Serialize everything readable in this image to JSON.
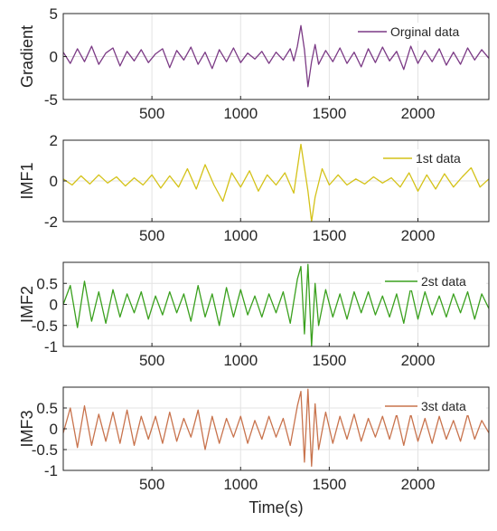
{
  "chart_data": [
    {
      "type": "line",
      "ylabel": "Gradient",
      "xlim": [
        0,
        2400
      ],
      "ylim": [
        -5,
        5
      ],
      "xticks": [
        500,
        1000,
        1500,
        2000
      ],
      "yticks": [
        -5,
        0,
        5
      ],
      "grid": true,
      "legend_position": "top-right",
      "color": "#7b3a85",
      "series": [
        {
          "name": "Orginal data",
          "x": [
            0,
            40,
            80,
            120,
            160,
            200,
            240,
            280,
            320,
            360,
            400,
            440,
            480,
            520,
            560,
            600,
            640,
            680,
            720,
            760,
            800,
            840,
            880,
            920,
            960,
            1000,
            1040,
            1080,
            1120,
            1160,
            1200,
            1240,
            1280,
            1300,
            1320,
            1340,
            1360,
            1380,
            1400,
            1420,
            1440,
            1480,
            1520,
            1560,
            1600,
            1640,
            1680,
            1720,
            1760,
            1800,
            1840,
            1880,
            1920,
            1960,
            2000,
            2040,
            2080,
            2120,
            2160,
            2200,
            2240,
            2280,
            2320,
            2360,
            2400
          ],
          "values": [
            0.5,
            -0.8,
            0.9,
            -0.6,
            1.2,
            -0.9,
            0.4,
            1.0,
            -1.1,
            0.6,
            -0.5,
            0.8,
            -0.7,
            0.3,
            0.9,
            -1.3,
            0.7,
            -0.4,
            1.1,
            -0.9,
            0.5,
            -1.4,
            0.8,
            -0.6,
            1.0,
            -0.7,
            0.4,
            -0.3,
            0.6,
            -0.8,
            0.5,
            -0.4,
            0.9,
            -0.5,
            1.2,
            3.6,
            0.8,
            -3.5,
            -0.6,
            1.4,
            -0.9,
            0.7,
            -0.6,
            1.0,
            -0.8,
            0.5,
            -1.2,
            0.9,
            -0.7,
            1.1,
            -0.5,
            0.6,
            -1.5,
            1.2,
            -0.8,
            0.7,
            -0.6,
            0.9,
            -1.0,
            0.5,
            -0.9,
            1.0,
            -0.4,
            0.8,
            -0.2
          ]
        }
      ]
    },
    {
      "type": "line",
      "ylabel": "IMF1",
      "xlim": [
        0,
        2400
      ],
      "ylim": [
        -2,
        2
      ],
      "xticks": [
        500,
        1000,
        1500,
        2000
      ],
      "yticks": [
        -2,
        0,
        2
      ],
      "grid": true,
      "legend_position": "top-right",
      "color": "#d4c218",
      "series": [
        {
          "name": "1st data",
          "x": [
            0,
            50,
            100,
            150,
            200,
            250,
            300,
            350,
            400,
            450,
            500,
            550,
            600,
            650,
            700,
            750,
            800,
            850,
            900,
            950,
            1000,
            1050,
            1100,
            1150,
            1200,
            1250,
            1300,
            1340,
            1380,
            1400,
            1420,
            1460,
            1500,
            1550,
            1600,
            1650,
            1700,
            1750,
            1800,
            1850,
            1900,
            1950,
            2000,
            2050,
            2100,
            2150,
            2200,
            2250,
            2300,
            2350,
            2400
          ],
          "values": [
            0.1,
            -0.2,
            0.25,
            -0.15,
            0.3,
            -0.1,
            0.2,
            -0.25,
            0.15,
            -0.2,
            0.3,
            -0.35,
            0.25,
            -0.3,
            0.6,
            -0.4,
            0.8,
            -0.2,
            -1.0,
            0.4,
            -0.3,
            0.5,
            -0.5,
            0.3,
            -0.2,
            0.4,
            -0.6,
            1.8,
            -0.5,
            -2.0,
            -0.8,
            0.6,
            -0.2,
            0.3,
            -0.2,
            0.1,
            -0.15,
            0.2,
            -0.1,
            0.15,
            -0.3,
            0.4,
            -0.5,
            0.3,
            -0.4,
            0.35,
            -0.3,
            0.2,
            0.65,
            -0.3,
            0.1
          ]
        }
      ]
    },
    {
      "type": "line",
      "ylabel": "IMF2",
      "xlim": [
        0,
        2400
      ],
      "ylim": [
        -1,
        1
      ],
      "xticks": [
        500,
        1000,
        1500,
        2000
      ],
      "yticks": [
        -1,
        -0.5,
        0,
        0.5
      ],
      "grid": true,
      "legend_position": "top-right",
      "color": "#3aa01e",
      "series": [
        {
          "name": "2st data",
          "x": [
            0,
            40,
            80,
            120,
            160,
            200,
            240,
            280,
            320,
            360,
            400,
            440,
            480,
            520,
            560,
            600,
            640,
            680,
            720,
            760,
            800,
            840,
            880,
            920,
            960,
            1000,
            1040,
            1080,
            1120,
            1160,
            1200,
            1240,
            1280,
            1320,
            1340,
            1360,
            1380,
            1400,
            1420,
            1440,
            1480,
            1520,
            1560,
            1600,
            1640,
            1680,
            1720,
            1760,
            1800,
            1840,
            1880,
            1920,
            1960,
            2000,
            2040,
            2080,
            2120,
            2160,
            2200,
            2240,
            2280,
            2320,
            2360,
            2400
          ],
          "values": [
            0.0,
            0.45,
            -0.55,
            0.55,
            -0.4,
            0.3,
            -0.45,
            0.35,
            -0.3,
            0.25,
            -0.2,
            0.3,
            -0.35,
            0.2,
            -0.25,
            0.3,
            -0.2,
            0.25,
            -0.4,
            0.45,
            -0.3,
            0.25,
            -0.5,
            0.4,
            -0.3,
            0.35,
            -0.25,
            0.2,
            -0.3,
            0.25,
            -0.2,
            0.3,
            -0.45,
            0.6,
            0.9,
            -0.7,
            0.95,
            -1.0,
            0.5,
            -0.5,
            0.35,
            -0.3,
            0.25,
            -0.35,
            0.3,
            -0.2,
            0.3,
            -0.25,
            0.2,
            -0.3,
            0.25,
            -0.45,
            0.4,
            -0.35,
            0.3,
            -0.25,
            0.2,
            -0.3,
            0.25,
            -0.2,
            0.3,
            -0.35,
            0.25,
            -0.1
          ]
        }
      ]
    },
    {
      "type": "line",
      "ylabel": "IMF3",
      "xlim": [
        0,
        2400
      ],
      "ylim": [
        -1,
        1
      ],
      "xticks": [
        500,
        1000,
        1500,
        2000
      ],
      "yticks": [
        -1,
        -0.5,
        0,
        0.5
      ],
      "xlabel": "Time(s)",
      "grid": true,
      "legend_position": "top-right",
      "color": "#c8734d",
      "series": [
        {
          "name": "3st data",
          "x": [
            0,
            40,
            80,
            120,
            160,
            200,
            240,
            280,
            320,
            360,
            400,
            440,
            480,
            520,
            560,
            600,
            640,
            680,
            720,
            760,
            800,
            840,
            880,
            920,
            960,
            1000,
            1040,
            1080,
            1120,
            1160,
            1200,
            1240,
            1280,
            1320,
            1340,
            1360,
            1380,
            1400,
            1420,
            1440,
            1480,
            1520,
            1560,
            1600,
            1640,
            1680,
            1720,
            1760,
            1800,
            1840,
            1880,
            1920,
            1960,
            2000,
            2040,
            2080,
            2120,
            2160,
            2200,
            2240,
            2280,
            2320,
            2360,
            2400
          ],
          "values": [
            -0.1,
            0.5,
            -0.45,
            0.55,
            -0.4,
            0.35,
            -0.3,
            0.4,
            -0.35,
            0.45,
            -0.4,
            0.3,
            -0.25,
            0.3,
            -0.35,
            0.4,
            -0.3,
            0.25,
            -0.2,
            0.45,
            -0.5,
            0.3,
            -0.35,
            0.25,
            -0.2,
            0.3,
            -0.35,
            0.2,
            -0.25,
            0.3,
            -0.2,
            0.25,
            -0.4,
            0.55,
            0.9,
            -0.8,
            0.95,
            -0.9,
            0.6,
            -0.5,
            0.4,
            -0.35,
            0.3,
            -0.25,
            0.35,
            -0.3,
            0.25,
            -0.2,
            0.3,
            -0.25,
            0.35,
            -0.4,
            0.35,
            -0.3,
            0.25,
            -0.35,
            0.3,
            -0.25,
            0.2,
            -0.3,
            0.35,
            -0.25,
            0.2,
            -0.1
          ]
        }
      ]
    }
  ]
}
